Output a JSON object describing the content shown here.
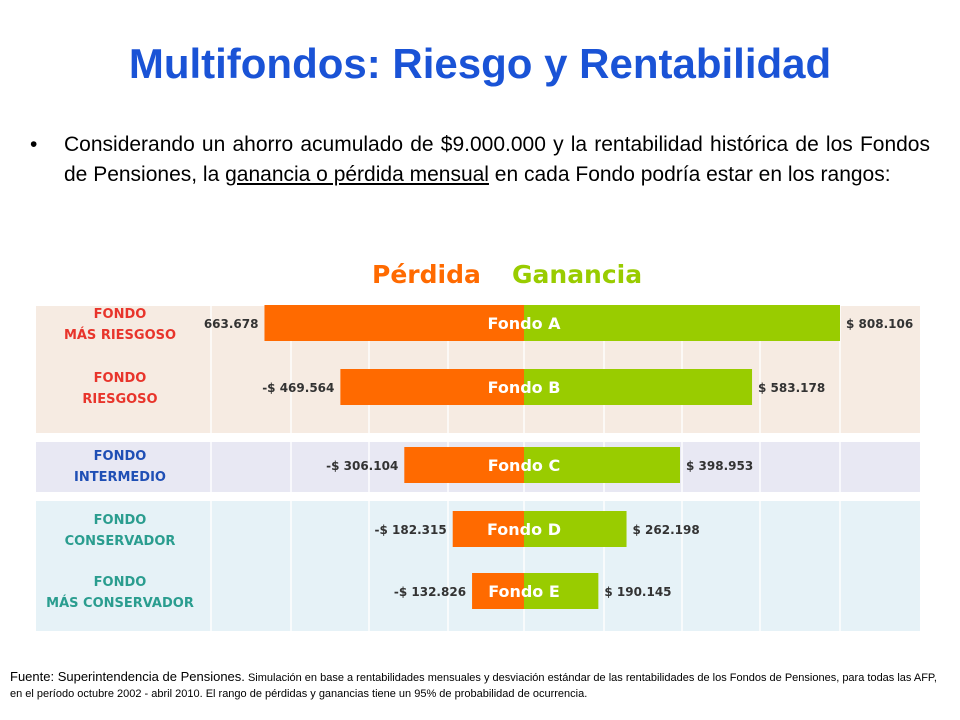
{
  "slide": {
    "title": "Multifondos: Riesgo y Rentabilidad",
    "bullet": {
      "before": "Considerando un ahorro acumulado de $9.000.000 y la rentabilidad histórica de los Fondos de Pensiones, la ",
      "underlined": "ganancia o pérdida mensual",
      "after": " en cada Fondo podría estar en los rangos:"
    },
    "footer": {
      "source": "Fuente: Superintendencia de Pensiones.",
      "note": " Simulación en base a rentabilidades mensuales y desviación estándar de las rentabilidades de los Fondos de Pensiones, para todas las AFP, en el período octubre 2002 - abril 2010. El rango de pérdidas y ganancias tiene un 95% de probabilidad de ocurrencia."
    }
  },
  "colors": {
    "loss": "#ff6a00",
    "gain": "#99cc00",
    "title": "#1a53d6",
    "risk_label": "#e8342b",
    "intermediate_label": "#1f4fb5",
    "conservative_label": "#2a9d8f",
    "band_risk": "#f6ebe2",
    "band_intermediate": "#e8e8f3",
    "band_conservative": "#e6f2f7",
    "bar_text": "#ffffff"
  },
  "chart_data": {
    "type": "bar",
    "orientation": "horizontal-diverging",
    "legend": [
      "Pérdida",
      "Ganancia"
    ],
    "categories": [
      "Fondo A",
      "Fondo B",
      "Fondo C",
      "Fondo D",
      "Fondo E"
    ],
    "group_labels": [
      [
        "FONDO",
        "MÁS RIESGOSO"
      ],
      [
        "FONDO",
        "RIESGOSO"
      ],
      [
        "FONDO",
        "INTERMEDIO"
      ],
      [
        "FONDO",
        "CONSERVADOR"
      ],
      [
        "FONDO",
        "MÁS CONSERVADOR"
      ]
    ],
    "group_label_colors": [
      "risk_label",
      "risk_label",
      "intermediate_label",
      "conservative_label",
      "conservative_label"
    ],
    "series": [
      {
        "name": "Pérdida",
        "values": [
          -663678,
          -469564,
          -306104,
          -182315,
          -132826
        ]
      },
      {
        "name": "Ganancia",
        "values": [
          808106,
          583178,
          398953,
          262198,
          190145
        ]
      }
    ],
    "loss_labels": [
      "663.678",
      "-$ 469.564",
      "-$ 306.104",
      "-$ 182.315",
      "-$ 132.826"
    ],
    "gain_labels": [
      "$ 808.106",
      "$ 583.178",
      "$ 398.953",
      "$ 262.198",
      "$ 190.145"
    ],
    "xlim": [
      -1100000,
      1000000
    ],
    "grid": true
  }
}
